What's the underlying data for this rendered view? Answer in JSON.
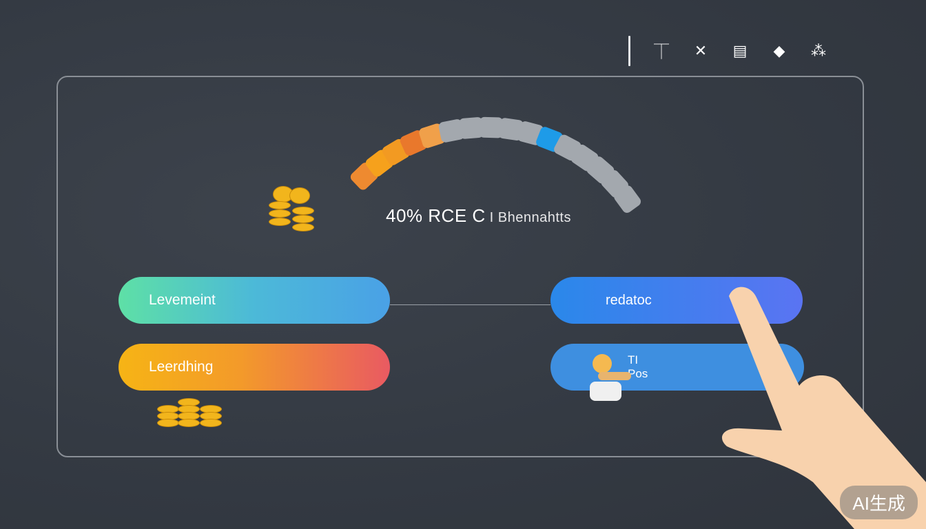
{
  "toolbar": {
    "icons": [
      "person-stand-icon",
      "crossed-tools-icon",
      "server-icon",
      "diamond-icon",
      "grid-glyph-icon"
    ],
    "glyphs": [
      "⏉",
      "✕",
      "▤",
      "◆",
      "⁂"
    ]
  },
  "gauge": {
    "progress_percent": 40,
    "segments": 16,
    "colors": {
      "active": "#f08a2a",
      "marker": "#1e9be8",
      "inactive": "#a3a8ae"
    }
  },
  "headline": {
    "value": "40% RCE C",
    "sub": "I Bhennahtts"
  },
  "buttons": [
    {
      "label": "Levemeint"
    },
    {
      "label": "Leerdhing"
    },
    {
      "label": "redatoc"
    },
    {
      "label_line1": "TI",
      "label_line2": "Pos"
    }
  ],
  "watermark": "AI生成"
}
